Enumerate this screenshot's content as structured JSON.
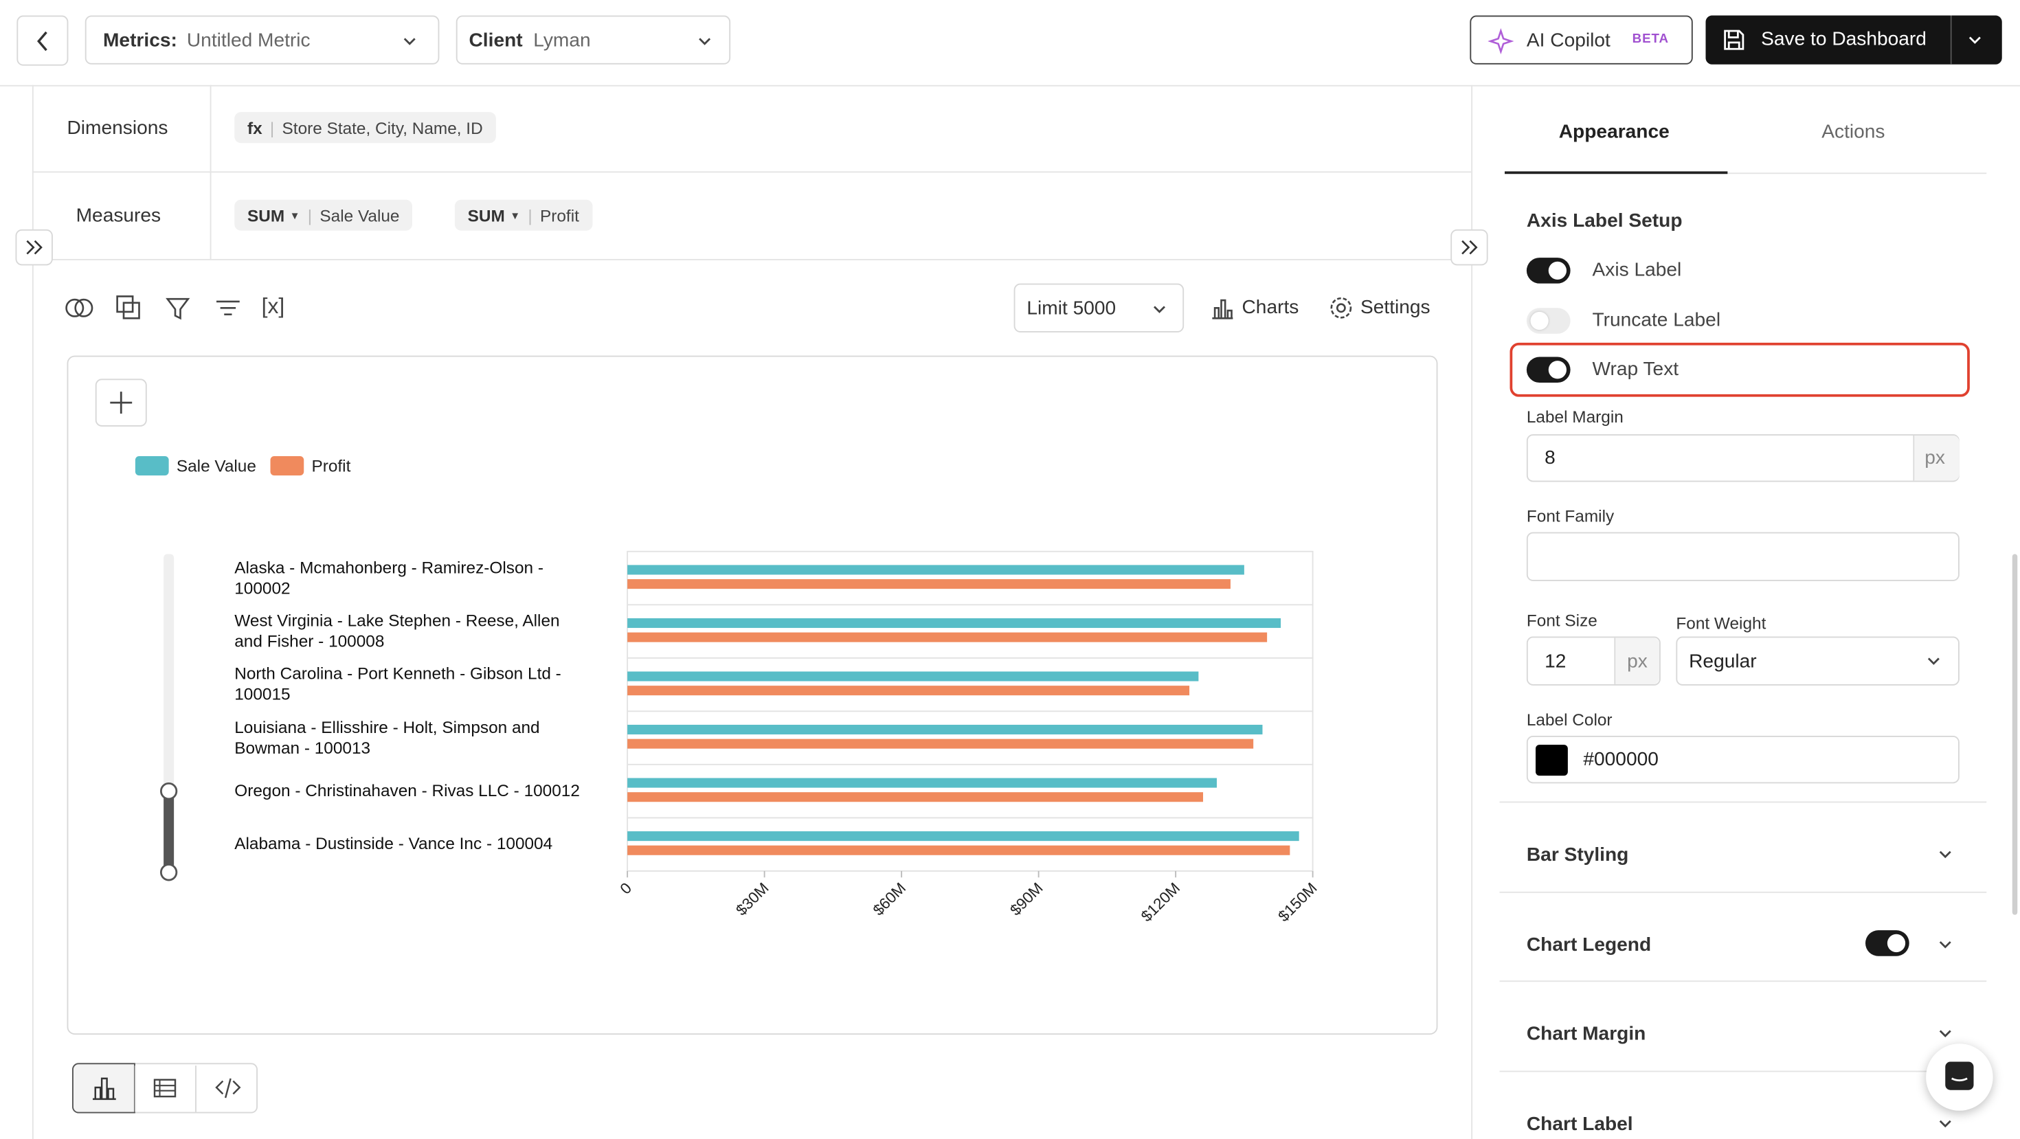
{
  "header": {
    "metrics_label": "Metrics:",
    "metrics_value": "Untitled Metric",
    "client_label": "Client",
    "client_value": "Lyman",
    "copilot": "AI Copilot",
    "beta": "BETA",
    "save": "Save to Dashboard"
  },
  "query": {
    "dimensions_label": "Dimensions",
    "dimension_fx": "fx",
    "dimension_value": "Store State, City, Name, ID",
    "measures_label": "Measures",
    "measures": [
      {
        "agg": "SUM",
        "field": "Sale Value"
      },
      {
        "agg": "SUM",
        "field": "Profit"
      }
    ]
  },
  "toolbar": {
    "variables": "[x]",
    "limit": "Limit 5000",
    "charts": "Charts",
    "settings": "Settings"
  },
  "chart_data": {
    "type": "bar",
    "orientation": "horizontal",
    "categories": [
      "Alaska - Mcmahonberg - Ramirez-Olson - 100002",
      "West Virginia - Lake Stephen - Reese, Allen and Fisher - 100008",
      "North Carolina - Port Kenneth - Gibson Ltd - 100015",
      "Louisiana - Ellisshire - Holt, Simpson and Bowman - 100013",
      "Oregon - Christinahaven - Rivas LLC - 100012",
      "Alabama - Dustinside - Vance Inc - 100004"
    ],
    "series": [
      {
        "name": "Sale Value",
        "color": "#58bdc7",
        "values": [
          135000000,
          143000000,
          125000000,
          139000000,
          129000000,
          147000000
        ]
      },
      {
        "name": "Profit",
        "color": "#f08a5d",
        "values": [
          132000000,
          140000000,
          123000000,
          137000000,
          126000000,
          145000000
        ]
      }
    ],
    "xlim": [
      0,
      150000000
    ],
    "xticks": [
      0,
      {
        "value": 30000000,
        "label": "$30M"
      },
      {
        "value": 60000000,
        "label": "$60M"
      },
      {
        "value": 90000000,
        "label": "$90M"
      },
      {
        "value": 120000000,
        "label": "$120M"
      },
      {
        "value": 150000000,
        "label": "$150M"
      }
    ],
    "legend": "top-left"
  },
  "panel": {
    "tabs": [
      "Appearance",
      "Actions"
    ],
    "section": "Axis Label Setup",
    "toggles": [
      {
        "label": "Axis Label",
        "on": true
      },
      {
        "label": "Truncate Label",
        "on": false
      },
      {
        "label": "Wrap Text",
        "on": true
      }
    ],
    "label_margin": {
      "label": "Label Margin",
      "value": 8,
      "unit": "px"
    },
    "font_family": {
      "label": "Font Family"
    },
    "font_size": {
      "label": "Font Size",
      "value": 12,
      "unit": "px"
    },
    "font_weight": {
      "label": "Font Weight",
      "value": "Regular"
    },
    "label_color": {
      "label": "Label Color",
      "value": "#000000"
    },
    "sections": [
      {
        "title": "Bar Styling"
      },
      {
        "title": "Chart Legend",
        "toggle": true
      },
      {
        "title": "Chart Margin"
      },
      {
        "title": "Chart Label"
      }
    ]
  }
}
